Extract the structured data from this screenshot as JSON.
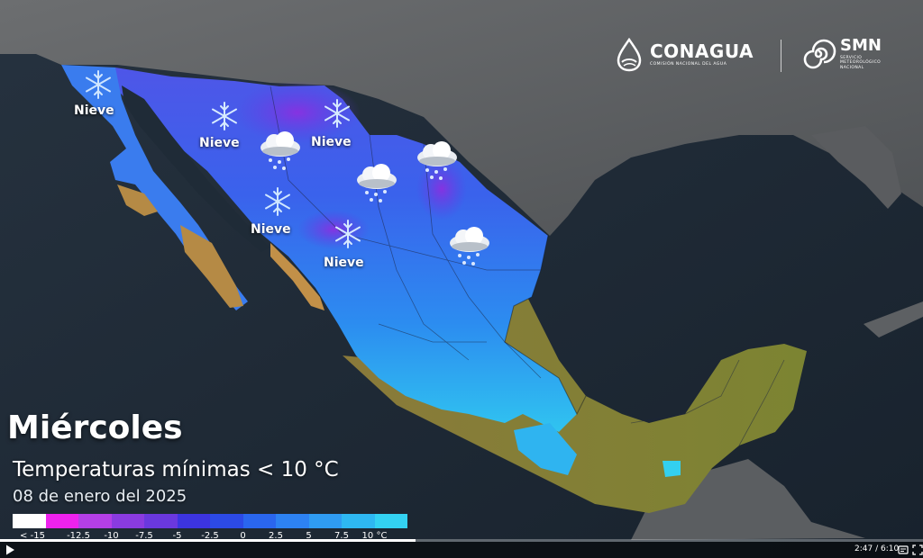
{
  "logos": {
    "conagua": {
      "name": "CONAGUA",
      "subtitle": "COMISIÓN NACIONAL DEL AGUA",
      "icon": "water-drop-icon"
    },
    "smn": {
      "name": "SMN",
      "subtitle_lines": [
        "SERVICIO",
        "METEOROLÓGICO",
        "NACIONAL"
      ],
      "icon": "spiral-icon"
    }
  },
  "map": {
    "labels": [
      "Nieve",
      "Nieve",
      "Nieve",
      "Nieve",
      "Nieve"
    ],
    "icons": [
      "snowflake-icon",
      "snowflake-icon",
      "snowflake-icon",
      "snowflake-icon",
      "snowflake-icon",
      "snow-cloud-icon",
      "snow-cloud-icon",
      "snow-cloud-icon",
      "snow-cloud-icon"
    ]
  },
  "caption": {
    "day": "Miércoles",
    "title": "Temperaturas mínimas < 10 °C",
    "date": "08 de enero del 2025"
  },
  "legend": {
    "colors": [
      "#ffffff",
      "#ee22ee",
      "#b43fe6",
      "#8a3be0",
      "#6a38de",
      "#3c34e0",
      "#2c4ae6",
      "#2a66ee",
      "#2d82f2",
      "#2f9cf2",
      "#2eb8f2",
      "#33d2f2"
    ],
    "ticks": [
      "<  -15",
      "-12.5",
      "-10",
      "-7.5",
      "-5",
      "-2.5",
      "0",
      "2.5",
      "5",
      "7.5",
      "10 °C"
    ]
  },
  "player": {
    "time": "2:47 / 6:10",
    "progress": 0.45,
    "play_icon": "play-icon",
    "settings_icon": "settings-icon",
    "fullscreen_icon": "fullscreen-icon"
  }
}
